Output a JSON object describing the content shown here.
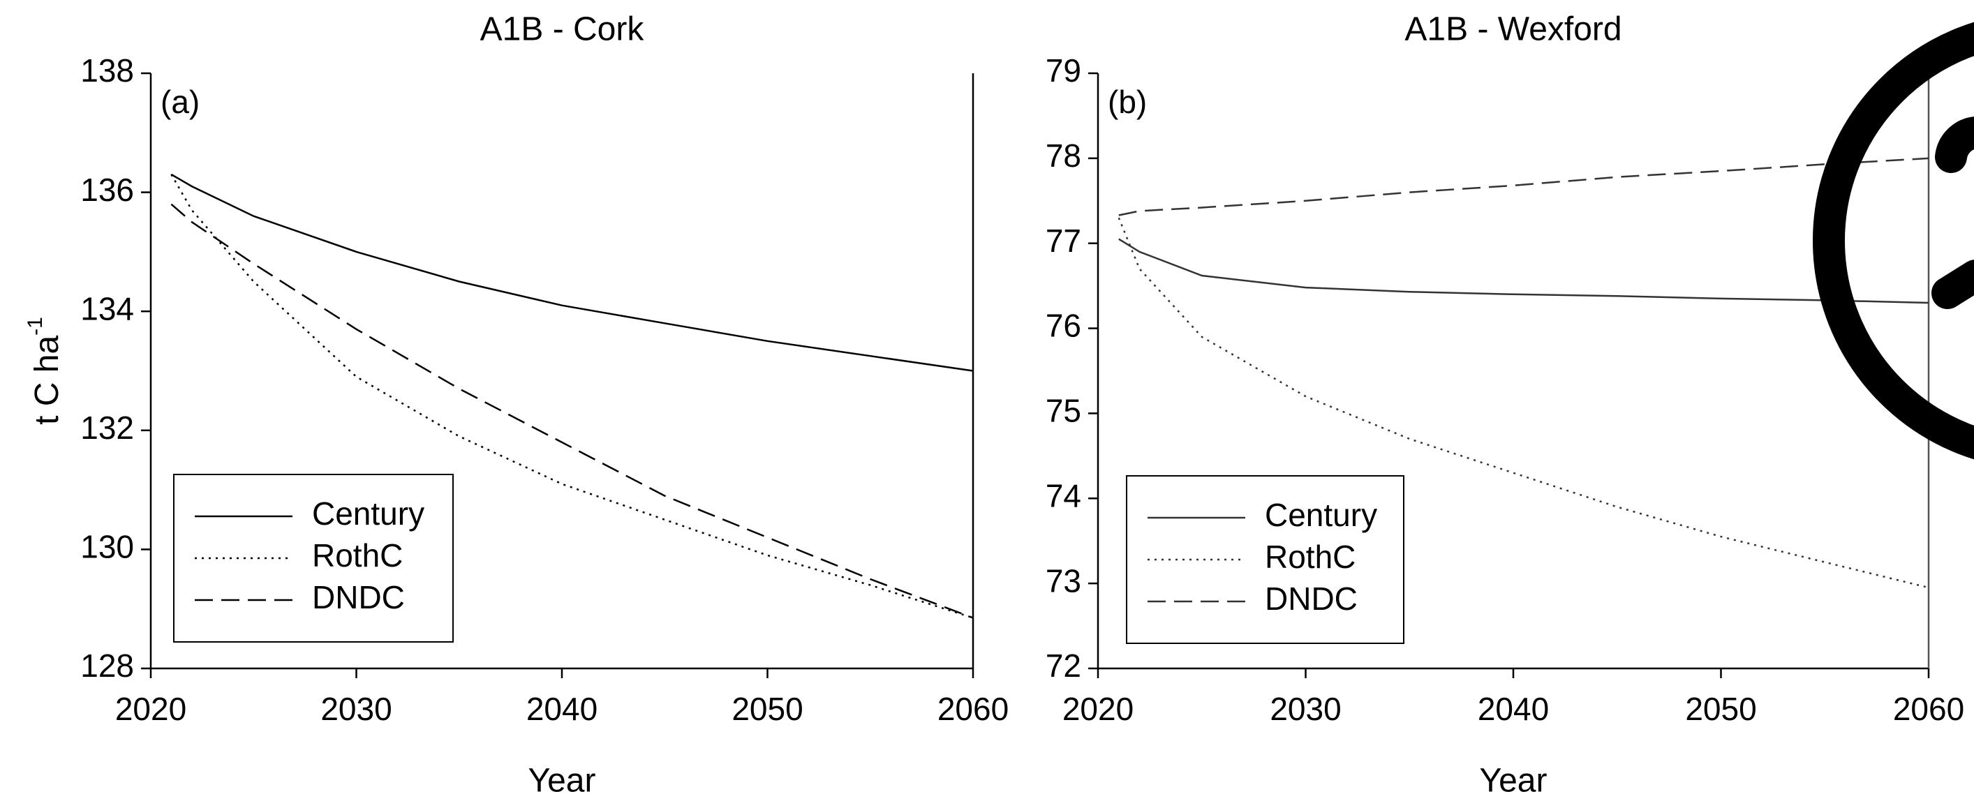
{
  "chart_data": [
    {
      "type": "line",
      "title": "A1B - Cork",
      "annotation": "(a)",
      "xlabel": "Year",
      "ylabel": "t C ha",
      "ylabel_superscript": "-1",
      "x": [
        2021,
        2022,
        2025,
        2030,
        2035,
        2040,
        2045,
        2050,
        2055,
        2060
      ],
      "series": [
        {
          "name": "Century",
          "color": "#000000",
          "dash": "solid",
          "values": [
            136.3,
            136.1,
            135.6,
            135.0,
            134.5,
            134.1,
            133.8,
            133.5,
            133.25,
            133.0
          ]
        },
        {
          "name": "RothC",
          "color": "#000000",
          "dash": "dotted",
          "values": [
            136.3,
            135.7,
            134.5,
            132.9,
            131.9,
            131.1,
            130.5,
            129.9,
            129.4,
            128.85
          ]
        },
        {
          "name": "DNDC",
          "color": "#000000",
          "dash": "dashed",
          "values": [
            135.8,
            135.5,
            134.8,
            133.7,
            132.7,
            131.8,
            130.9,
            130.2,
            129.5,
            128.85
          ]
        }
      ],
      "xlim": [
        2020,
        2060
      ],
      "xticks": [
        2020,
        2030,
        2040,
        2050,
        2060
      ],
      "ylim": [
        128,
        138
      ],
      "yticks": [
        128,
        130,
        132,
        134,
        136,
        138
      ],
      "legend": "lower left"
    },
    {
      "type": "line",
      "title": "A1B - Wexford",
      "annotation": "(b)",
      "xlabel": "Year",
      "x": [
        2021,
        2022,
        2025,
        2030,
        2035,
        2040,
        2045,
        2050,
        2055,
        2060
      ],
      "series": [
        {
          "name": "Century",
          "color": "#333333",
          "dash": "solid",
          "values": [
            77.05,
            76.9,
            76.62,
            76.48,
            76.43,
            76.4,
            76.38,
            76.35,
            76.33,
            76.3
          ]
        },
        {
          "name": "RothC",
          "color": "#333333",
          "dash": "dotted",
          "values": [
            77.3,
            76.7,
            75.9,
            75.2,
            74.7,
            74.3,
            73.9,
            73.55,
            73.25,
            72.95
          ]
        },
        {
          "name": "DNDC",
          "color": "#333333",
          "dash": "dashed",
          "values": [
            77.33,
            77.38,
            77.42,
            77.5,
            77.6,
            77.68,
            77.78,
            77.85,
            77.93,
            78.0
          ]
        }
      ],
      "xlim": [
        2020,
        2060
      ],
      "xticks": [
        2020,
        2030,
        2040,
        2050,
        2060
      ],
      "ylim": [
        72,
        79
      ],
      "yticks": [
        72,
        73,
        74,
        75,
        76,
        77,
        78,
        79
      ],
      "legend": "lower left"
    }
  ]
}
